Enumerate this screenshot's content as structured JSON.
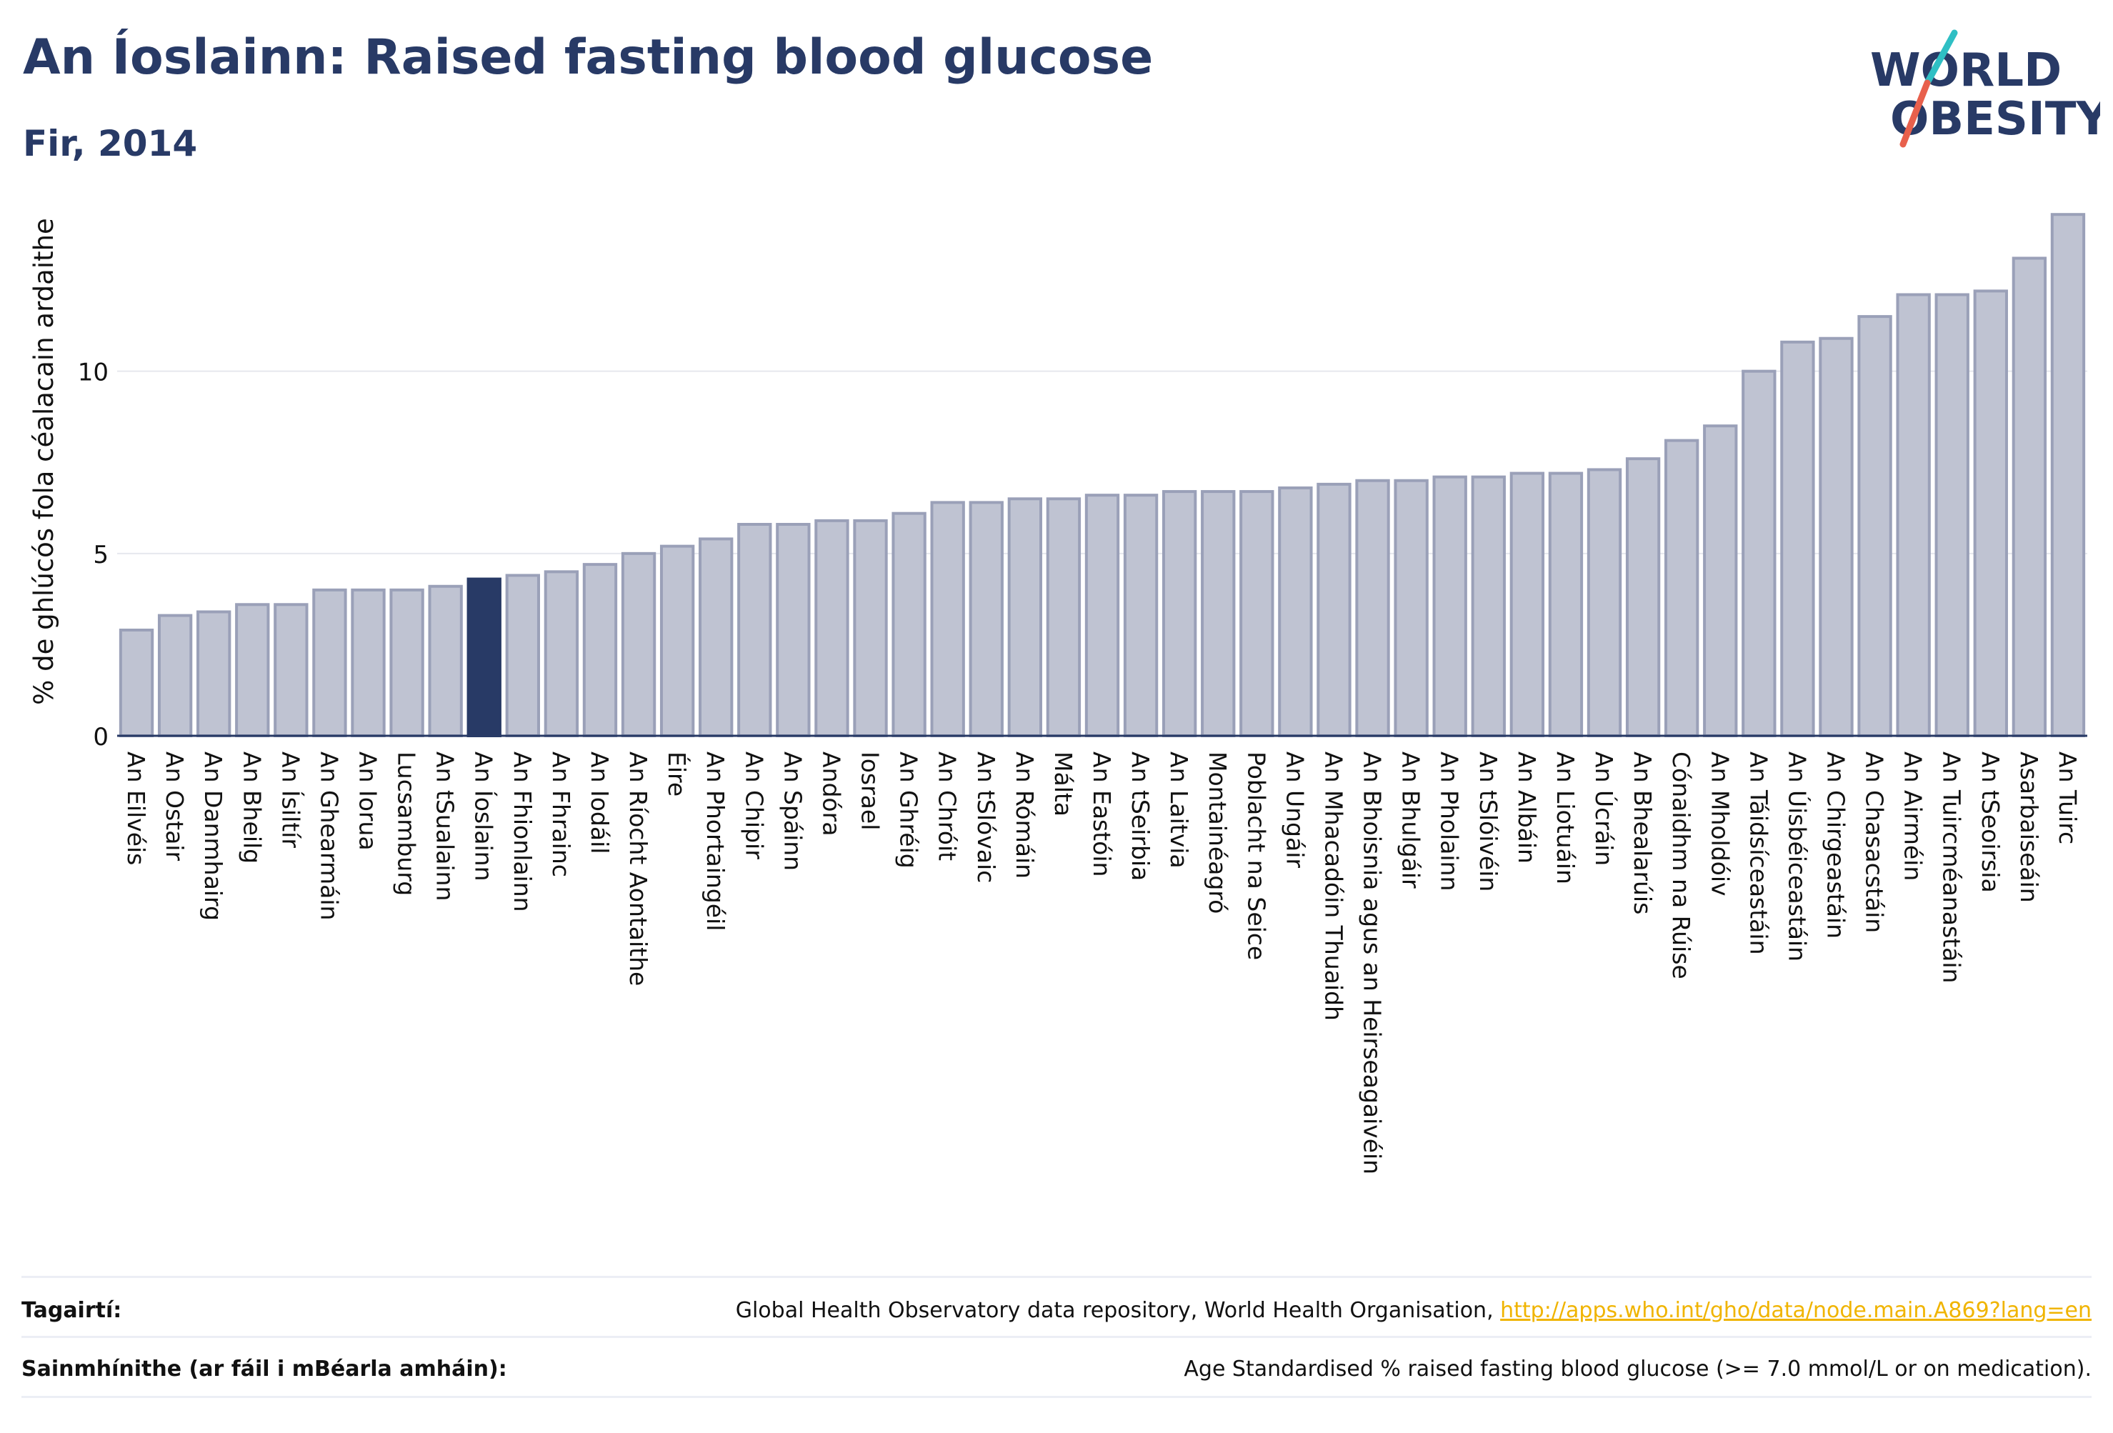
{
  "header": {
    "title": "An Íoslainn: Raised fasting blood glucose",
    "subtitle": "Fir, 2014"
  },
  "logo": {
    "line1": "WORLD",
    "line2": "OBESITY",
    "colors": [
      "#283a66",
      "#2fbfc4",
      "#e8604c"
    ]
  },
  "colors": {
    "bar": "#bfc3d2",
    "bar_edge": "#9aa0b8",
    "highlight": "#283a66",
    "axis": "#283a66",
    "grid": "#e6e8ee"
  },
  "chart_data": {
    "type": "bar",
    "ylabel": "% de ghlúcós fola céalacain ardaithe",
    "ylim": [
      0,
      14.5
    ],
    "yticks": [
      0,
      5,
      10
    ],
    "grid": true,
    "highlight": "An Íoslainn",
    "categories": [
      "An Eilvéis",
      "An Ostair",
      "An Danmhairg",
      "An Bheilg",
      "An Ísiltír",
      "An Ghearmáin",
      "An Iorua",
      "Lucsamburg",
      "An tSualainn",
      "An Íoslainn",
      "An Fhionlainn",
      "An Fhrainc",
      "An Iodáil",
      "An Ríocht Aontaithe",
      "Éire",
      "An Phortaingéil",
      "An Chipir",
      "An Spáinn",
      "Andóra",
      "Iosrael",
      "An Ghréig",
      "An Chróit",
      "An tSlóvaic",
      "An Rómáin",
      "Málta",
      "An Eastóin",
      "An tSeirbia",
      "An Laitvia",
      "Montainéagró",
      "Poblacht na Seice",
      "An Ungáir",
      "An Mhacadóin Thuaidh",
      "An Bhoisnia agus an Heirseagaivéin",
      "An Bhulgáir",
      "An Pholainn",
      "An tSlóivéin",
      "An Albáin",
      "An Liotuáin",
      "An Úcráin",
      "An Bhealarúis",
      "Cónaidhm na Rúise",
      "An Mholdóiv",
      "An Táidsíceastáin",
      "An Úisbéiceastáin",
      "An Chirgeastáin",
      "An Chasacstáin",
      "An Airméin",
      "An Tuircméanastáin",
      "An tSeoirsia",
      "Asarbaiseáin",
      "An Tuirc"
    ],
    "values": [
      2.9,
      3.3,
      3.4,
      3.6,
      3.6,
      4.0,
      4.0,
      4.0,
      4.1,
      4.3,
      4.4,
      4.5,
      4.7,
      5.0,
      5.2,
      5.4,
      5.8,
      5.8,
      5.9,
      5.9,
      6.1,
      6.4,
      6.4,
      6.5,
      6.5,
      6.6,
      6.6,
      6.7,
      6.7,
      6.7,
      6.8,
      6.9,
      7.0,
      7.0,
      7.1,
      7.1,
      7.2,
      7.2,
      7.3,
      7.6,
      8.1,
      8.5,
      10.0,
      10.8,
      10.9,
      11.5,
      12.1,
      12.1,
      12.2,
      13.1,
      14.3
    ]
  },
  "footer": {
    "ref_label": "Tagairtí:",
    "ref_text": "Global Health Observatory data repository, World Health Organisation, ",
    "ref_link": "http://apps.who.int/gho/data/node.main.A869?lang=en",
    "def_label": "Sainmhínithe (ar fáil i mBéarla amháin):",
    "def_text": "Age Standardised % raised fasting blood glucose (>= 7.0 mmol/L or on medication)."
  }
}
